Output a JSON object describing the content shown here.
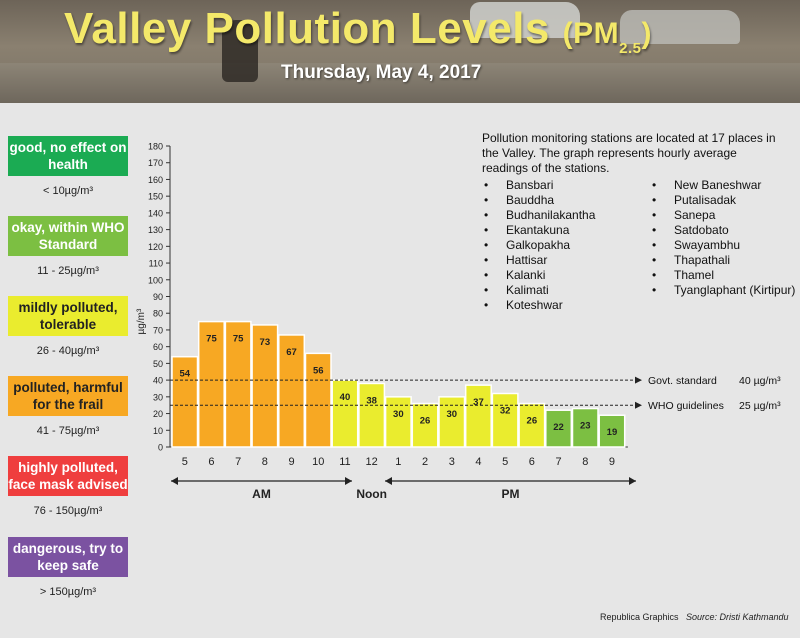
{
  "header": {
    "title_main": "Valley Pollution Levels",
    "title_pm_open": "(PM",
    "title_pm_sub": "2.5",
    "title_pm_close": ")",
    "date": "Thursday, May 4, 2017"
  },
  "legend": [
    {
      "label": "good, no effect on health",
      "range": "< 10µg/m³",
      "color": "#1bab53",
      "text_color": "#ffffff"
    },
    {
      "label": "okay, within WHO Standard",
      "range": "11 - 25µg/m³",
      "color": "#7cbf42",
      "text_color": "#ffffff"
    },
    {
      "label": "mildly polluted, tolerable",
      "range": "26 - 40µg/m³",
      "color": "#eaec2e",
      "text_color": "#222222"
    },
    {
      "label": "polluted, harmful for the frail",
      "range": "41 - 75µg/m³",
      "color": "#f7a823",
      "text_color": "#222222"
    },
    {
      "label": "highly polluted, face mask advised",
      "range": "76 - 150µg/m³",
      "color": "#ef3e3e",
      "text_color": "#ffffff"
    },
    {
      "label": "dangerous, try to keep safe",
      "range": "> 150µg/m³",
      "color": "#7b52a1",
      "text_color": "#ffffff"
    }
  ],
  "info": {
    "text": "Pollution monitoring stations are located at 17 places in the Valley. The graph represents hourly average readings of the stations.",
    "stations_col1": [
      "Bansbari",
      "Bauddha",
      "Budhanilakantha",
      "Ekantakuna",
      "Galkopakha",
      "Hattisar",
      "Kalanki",
      "Kalimati",
      "Koteshwar"
    ],
    "stations_col2": [
      "New Baneshwar",
      "Putalisadak",
      "Sanepa",
      "Satdobato",
      "Swayambhu",
      "Thapathali",
      "Thamel",
      "Tyanglaphant (Kirtipur)"
    ]
  },
  "footer": {
    "credit": "Republica Graphics",
    "source": "Source: Dristi Kathmandu"
  },
  "chart_data": {
    "type": "bar",
    "categories": [
      "5",
      "6",
      "7",
      "8",
      "9",
      "10",
      "11",
      "12",
      "1",
      "2",
      "3",
      "4",
      "5",
      "6",
      "7",
      "8",
      "9"
    ],
    "values": [
      54,
      75,
      75,
      73,
      67,
      56,
      40,
      38,
      30,
      26,
      30,
      37,
      32,
      26,
      22,
      23,
      19
    ],
    "bar_colors": [
      "#f7a823",
      "#f7a823",
      "#f7a823",
      "#f7a823",
      "#f7a823",
      "#f7a823",
      "#eaec2e",
      "#eaec2e",
      "#eaec2e",
      "#eaec2e",
      "#eaec2e",
      "#eaec2e",
      "#eaec2e",
      "#eaec2e",
      "#7cbf42",
      "#7cbf42",
      "#7cbf42"
    ],
    "ylabel": "µg/m³",
    "ylim": [
      0,
      180
    ],
    "yticks": [
      0,
      10,
      20,
      30,
      40,
      50,
      60,
      70,
      80,
      90,
      100,
      110,
      120,
      130,
      140,
      150,
      160,
      170,
      180
    ],
    "reference_lines": [
      {
        "value": 40,
        "label": "Govt. standard",
        "value_label": "40 µg/m³"
      },
      {
        "value": 25,
        "label": "WHO guidelines",
        "value_label": "25 µg/m³"
      }
    ],
    "periods": [
      {
        "label": "AM",
        "from": 0,
        "to": 5
      },
      {
        "label": "Noon",
        "from": 7,
        "to": 7
      },
      {
        "label": "PM",
        "from": 8,
        "to": 16
      }
    ],
    "grid": false
  }
}
